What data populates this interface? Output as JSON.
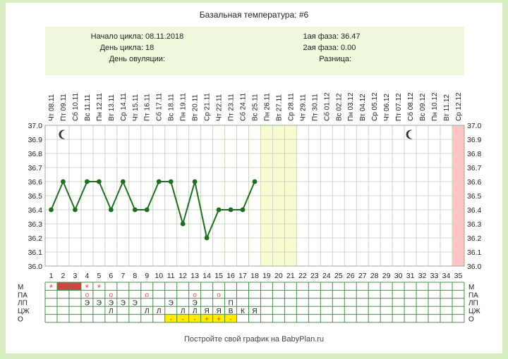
{
  "title": "Базальная температура: #6",
  "info": {
    "left": [
      {
        "label": "Начало цикла:",
        "value": "08.11.2018"
      },
      {
        "label": "День цикла:",
        "value": "18"
      },
      {
        "label": "День овуляции:",
        "value": ""
      }
    ],
    "right": [
      {
        "label": "1ая фаза:",
        "value": "36.47"
      },
      {
        "label": "2ая фаза:",
        "value": "0.00"
      },
      {
        "label": "Разница:",
        "value": ""
      }
    ]
  },
  "footer": "Постройте свой график на BabyPlan.ru",
  "colors": {
    "page_bg": "#d8ecc0",
    "info_bg": "#eef8dc",
    "line": "#1f6e1f",
    "grid": "#c8d8c0",
    "yellow_band": "#fafad0",
    "pink_band": "#ffc4c4",
    "menses_fill": "#cc4444",
    "marker_red": "#d9534f",
    "o_fill": "#ffee00"
  },
  "chart_data": {
    "type": "line",
    "ylim": [
      36.0,
      37.0
    ],
    "yticks": [
      "36.0",
      "36.1",
      "36.2",
      "36.3",
      "36.4",
      "36.5",
      "36.6",
      "36.7",
      "36.8",
      "36.9",
      "37.0"
    ],
    "days": [
      1,
      2,
      3,
      4,
      5,
      6,
      7,
      8,
      9,
      10,
      11,
      12,
      13,
      14,
      15,
      16,
      17,
      18,
      19,
      20,
      21,
      22,
      23,
      24,
      25,
      26,
      27,
      28,
      29,
      30,
      31,
      32,
      33,
      34,
      35
    ],
    "dates": [
      "Чт 08.11",
      "Пт 09.11",
      "Сб 10.11",
      "Вс 11.11",
      "Пн 12.11",
      "Вт 13.11",
      "Ср 14.11",
      "Чт 15.11",
      "Пт 16.11",
      "Сб 17.11",
      "Вс 18.11",
      "Пн 19.11",
      "Вт 20.11",
      "Ср 21.11",
      "Чт 22.11",
      "Пт 23.11",
      "Сб 24.11",
      "Вс 25.11",
      "Пн 26.11",
      "Вт 27.11",
      "Ср 28.11",
      "Чт 29.11",
      "Пт 30.11",
      "Сб 01.12",
      "Вс 02.12",
      "Пн 03.12",
      "Вт 04.12",
      "Ср 05.12",
      "Чт 06.12",
      "Пт 07.12",
      "Сб 08.12",
      "Вс 09.12",
      "Пн 10.12",
      "Вт 11.12",
      "Ср 12.12"
    ],
    "temperatures": [
      36.4,
      36.6,
      36.4,
      36.6,
      36.6,
      36.4,
      36.6,
      36.4,
      36.4,
      36.6,
      36.6,
      36.3,
      36.6,
      36.2,
      36.4,
      36.4,
      36.4,
      36.6
    ],
    "yellow_days": [
      19,
      21
    ],
    "pink_days": [
      35,
      35
    ],
    "moon_days": [
      2,
      31
    ],
    "rows": [
      {
        "label": "М",
        "cells": {
          "1": "*",
          "2": "fill",
          "3": "fill",
          "4": "*",
          "5": "*"
        }
      },
      {
        "label": "ПА",
        "cells": {
          "4": "o",
          "6": "o",
          "9": "o",
          "13": "o",
          "15": "o"
        }
      },
      {
        "label": "ЛП",
        "cells": {
          "4": "Э",
          "5": "Э",
          "6": "Э",
          "7": "Э",
          "8": "Э",
          "11": "Э",
          "13": "Э",
          "16": "П"
        }
      },
      {
        "label": "ЦЖ",
        "cells": {
          "6": "Л",
          "9": "Л",
          "10": "Л",
          "12": "Л",
          "13": "Л",
          "14": "Я",
          "15": "Я",
          "16": "В",
          "17": "К",
          "18": "Я"
        }
      },
      {
        "label": "О",
        "cells": {
          "11": "-",
          "12": "-",
          "13": "-",
          "14": "+",
          "15": "+",
          "16": "-"
        }
      }
    ]
  }
}
